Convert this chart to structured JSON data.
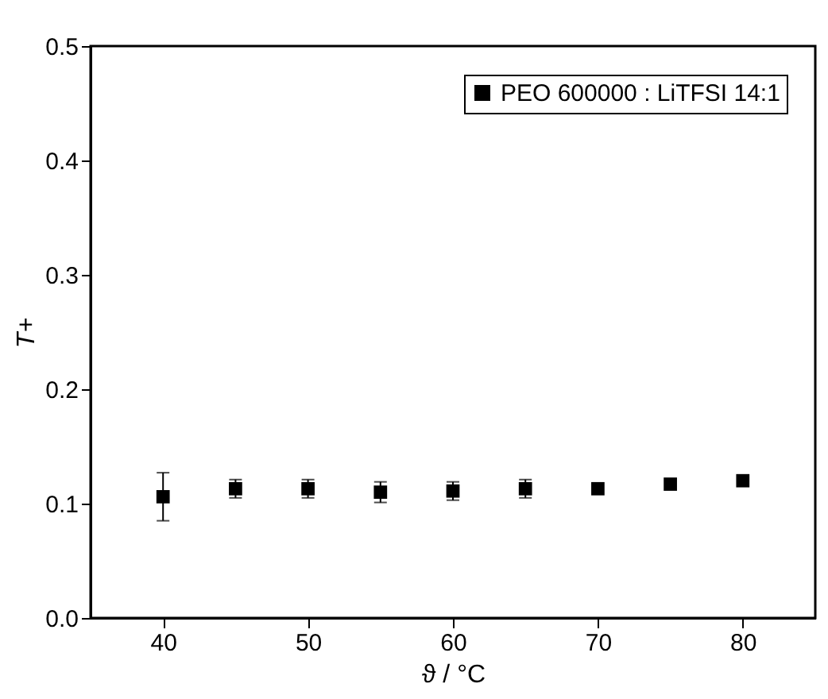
{
  "chart_data": {
    "type": "scatter",
    "xlabel": "ϑ / °C",
    "ylabel": "T+",
    "x": [
      40,
      45,
      50,
      55,
      60,
      65,
      70,
      75,
      80
    ],
    "series": [
      {
        "name": "PEO 600000 : LiTFSI 14:1",
        "color": "#000000",
        "values": [
          0.106,
          0.113,
          0.113,
          0.11,
          0.111,
          0.113,
          0.113,
          0.117,
          0.12
        ],
        "errors": [
          0.021,
          0.008,
          0.008,
          0.009,
          0.008,
          0.008,
          null,
          null,
          null
        ]
      }
    ],
    "xlim": [
      35,
      85
    ],
    "xticks": [
      40,
      50,
      60,
      70,
      80
    ],
    "ylim": [
      0,
      0.5
    ],
    "yticks": [
      {
        "value": 0,
        "label": "0.0"
      },
      0.1,
      0.2,
      0.3,
      0.4,
      0.5
    ],
    "marker": "square",
    "legend": "top right",
    "grid": false
  }
}
